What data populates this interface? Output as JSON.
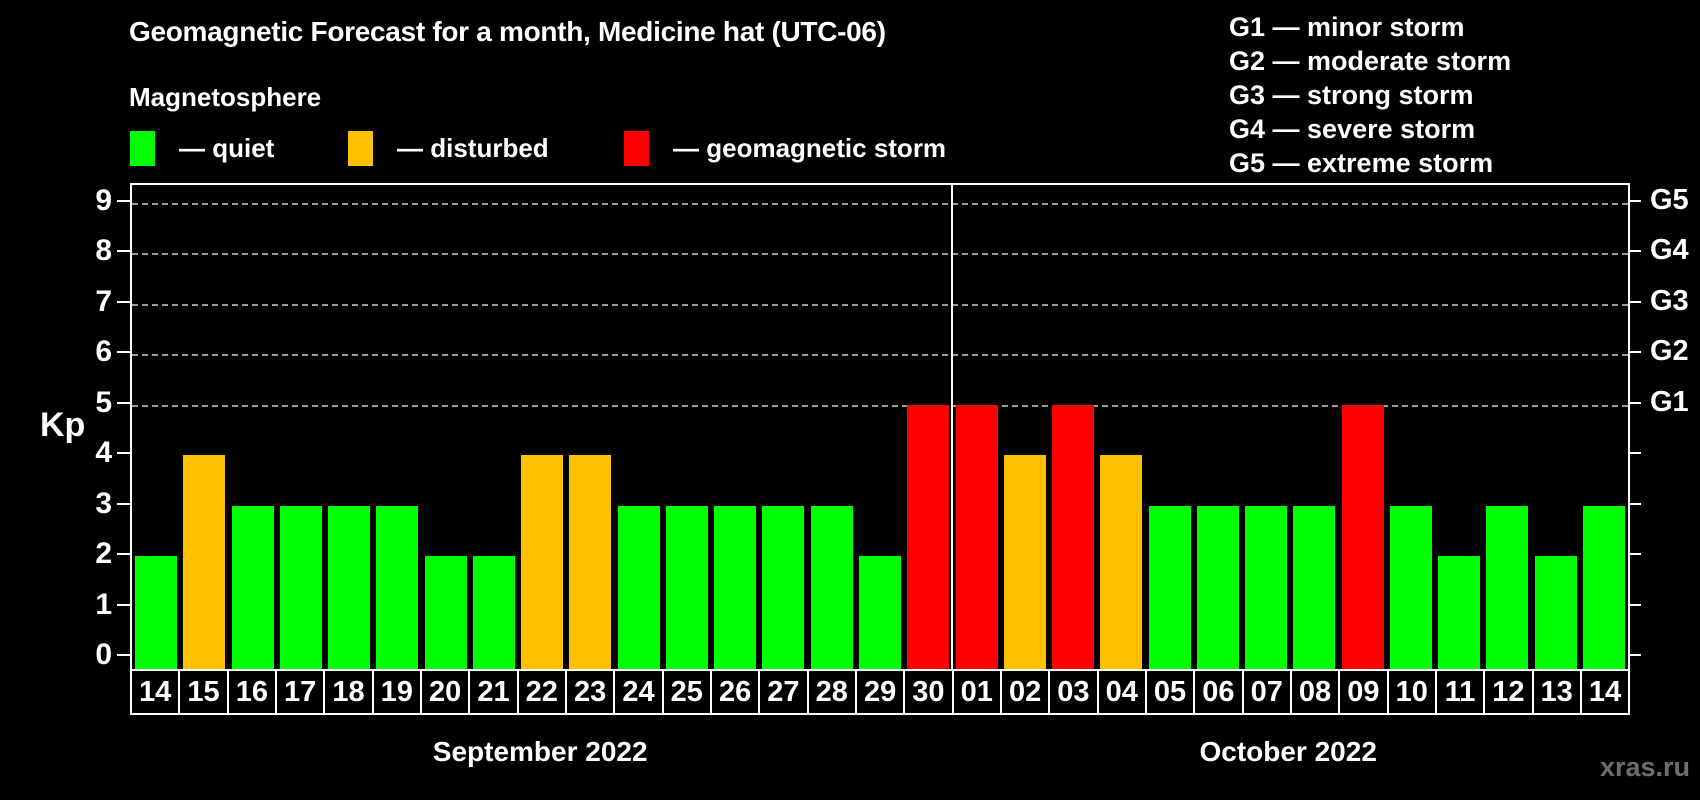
{
  "title": "Geomagnetic Forecast for a month, Medicine hat (UTC-06)",
  "subtitle": "Magnetosphere",
  "legend": {
    "items": [
      {
        "key": "quiet",
        "color": "#00ff00",
        "label": "— quiet"
      },
      {
        "key": "disturbed",
        "color": "#ffc000",
        "label": "— disturbed"
      },
      {
        "key": "storm",
        "color": "#ff0000",
        "label": "— geomagnetic storm"
      }
    ]
  },
  "g_scale_legend": [
    "G1 — minor storm",
    "G2 — moderate storm",
    "G3 — strong storm",
    "G4 — severe storm",
    "G5 — extreme storm"
  ],
  "watermark": "xras.ru",
  "chart_data": {
    "type": "bar",
    "ylabel": "Kp",
    "ylim": [
      0,
      9
    ],
    "yticks": [
      0,
      1,
      2,
      3,
      4,
      5,
      6,
      7,
      8,
      9
    ],
    "gridlines_at": [
      5,
      6,
      7,
      8,
      9
    ],
    "grid": "dashed horizontal lines at storm levels only",
    "legend_position": "top",
    "right_axis_labels": [
      {
        "value": 5,
        "label": "G1"
      },
      {
        "value": 6,
        "label": "G2"
      },
      {
        "value": 7,
        "label": "G3"
      },
      {
        "value": 8,
        "label": "G4"
      },
      {
        "value": 9,
        "label": "G5"
      }
    ],
    "colors": {
      "quiet": "#00ff00",
      "disturbed": "#ffc000",
      "storm": "#ff0000"
    },
    "months": [
      {
        "label": "September 2022",
        "days": 17
      },
      {
        "label": "October 2022",
        "days": 14
      }
    ],
    "bars": [
      {
        "day": "14",
        "kp": 2,
        "status": "quiet"
      },
      {
        "day": "15",
        "kp": 4,
        "status": "disturbed"
      },
      {
        "day": "16",
        "kp": 3,
        "status": "quiet"
      },
      {
        "day": "17",
        "kp": 3,
        "status": "quiet"
      },
      {
        "day": "18",
        "kp": 3,
        "status": "quiet"
      },
      {
        "day": "19",
        "kp": 3,
        "status": "quiet"
      },
      {
        "day": "20",
        "kp": 2,
        "status": "quiet"
      },
      {
        "day": "21",
        "kp": 2,
        "status": "quiet"
      },
      {
        "day": "22",
        "kp": 4,
        "status": "disturbed"
      },
      {
        "day": "23",
        "kp": 4,
        "status": "disturbed"
      },
      {
        "day": "24",
        "kp": 3,
        "status": "quiet"
      },
      {
        "day": "25",
        "kp": 3,
        "status": "quiet"
      },
      {
        "day": "26",
        "kp": 3,
        "status": "quiet"
      },
      {
        "day": "27",
        "kp": 3,
        "status": "quiet"
      },
      {
        "day": "28",
        "kp": 3,
        "status": "quiet"
      },
      {
        "day": "29",
        "kp": 2,
        "status": "quiet"
      },
      {
        "day": "30",
        "kp": 5,
        "status": "storm"
      },
      {
        "day": "01",
        "kp": 5,
        "status": "storm"
      },
      {
        "day": "02",
        "kp": 4,
        "status": "disturbed"
      },
      {
        "day": "03",
        "kp": 5,
        "status": "storm"
      },
      {
        "day": "04",
        "kp": 4,
        "status": "disturbed"
      },
      {
        "day": "05",
        "kp": 3,
        "status": "quiet"
      },
      {
        "day": "06",
        "kp": 3,
        "status": "quiet"
      },
      {
        "day": "07",
        "kp": 3,
        "status": "quiet"
      },
      {
        "day": "08",
        "kp": 3,
        "status": "quiet"
      },
      {
        "day": "09",
        "kp": 5,
        "status": "storm"
      },
      {
        "day": "10",
        "kp": 3,
        "status": "quiet"
      },
      {
        "day": "11",
        "kp": 2,
        "status": "quiet"
      },
      {
        "day": "12",
        "kp": 3,
        "status": "quiet"
      },
      {
        "day": "13",
        "kp": 2,
        "status": "quiet"
      },
      {
        "day": "14",
        "kp": 3,
        "status": "quiet"
      }
    ]
  }
}
